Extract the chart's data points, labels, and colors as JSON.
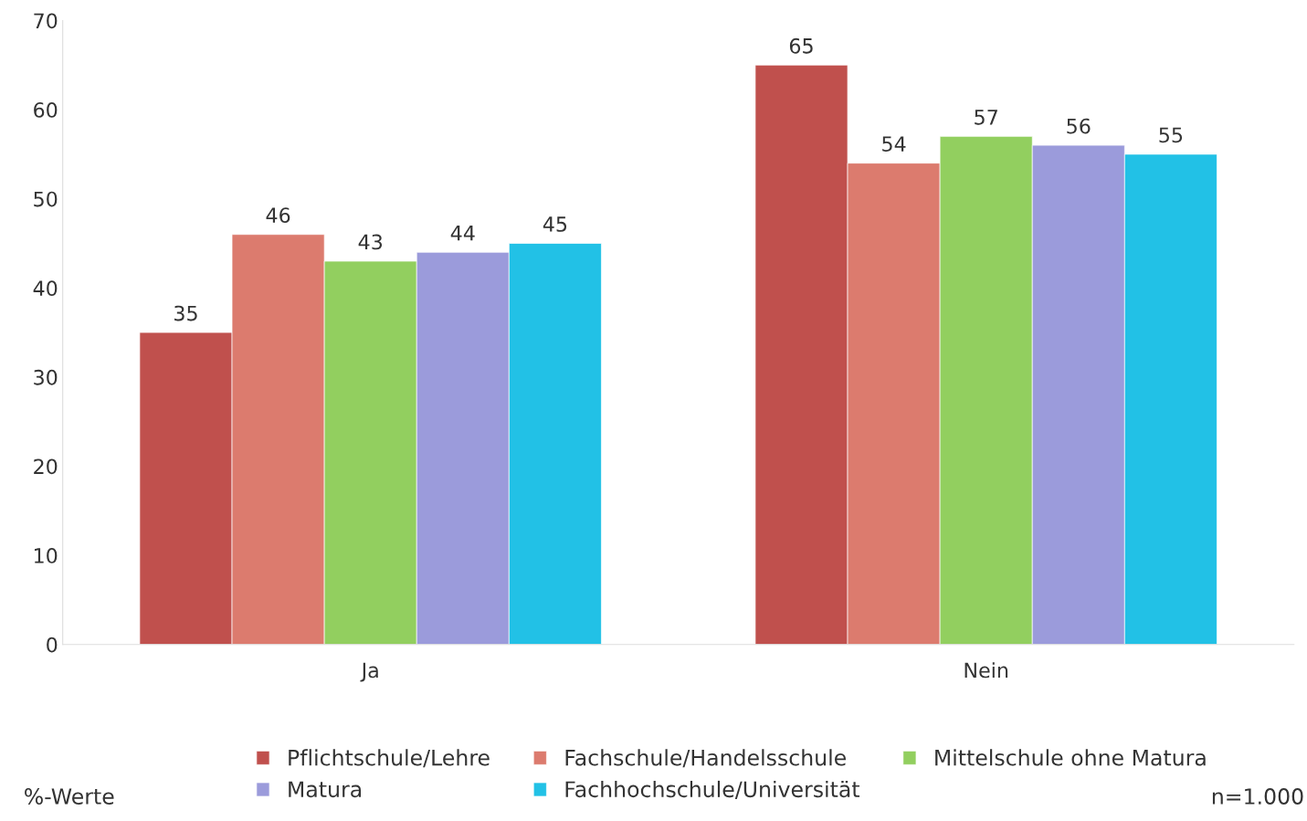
{
  "chart_data": {
    "type": "bar",
    "categories": [
      "Ja",
      "Nein"
    ],
    "series": [
      {
        "name": "Pflichtschule/Lehre",
        "color": "#c0504d",
        "values": [
          35,
          65
        ]
      },
      {
        "name": "Fachschule/Handelsschule",
        "color": "#dc7b6e",
        "values": [
          46,
          54
        ]
      },
      {
        "name": "Mittelschule ohne Matura",
        "color": "#92cf5f",
        "values": [
          43,
          57
        ]
      },
      {
        "name": "Matura",
        "color": "#9b9bdb",
        "values": [
          44,
          56
        ]
      },
      {
        "name": "Fachhochschule/Universität",
        "color": "#22c1e6",
        "values": [
          45,
          55
        ]
      }
    ],
    "ylim": [
      0,
      70
    ],
    "yticks": [
      0,
      10,
      20,
      30,
      40,
      50,
      60,
      70
    ],
    "grid": false,
    "legend": "bottom",
    "data_labels": true,
    "annotations": [
      "%-Werte",
      "n=1.000"
    ]
  }
}
